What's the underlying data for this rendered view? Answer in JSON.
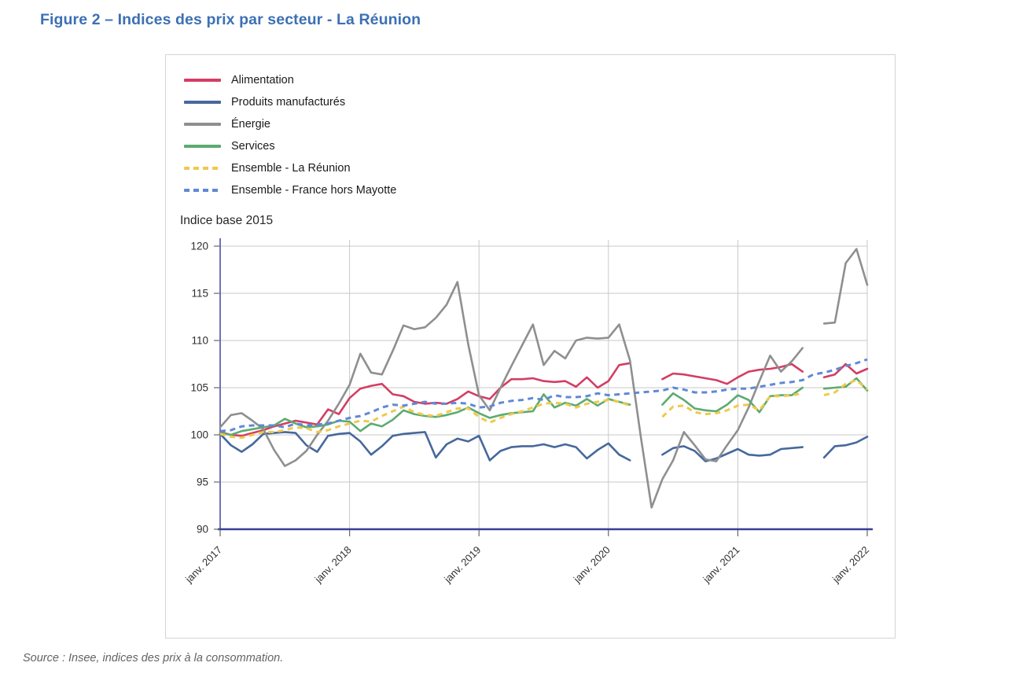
{
  "title": "Figure 2 – Indices des prix par secteur - La Réunion",
  "source_note": "Source : Insee, indices des prix à la consommation.",
  "palette": {
    "title_blue": "#3c70b4",
    "axis_line": "#3a3f96",
    "grid_gray": "#c9c9c9",
    "tick_text": "#2e2e2e",
    "panel_border": "#d4d4d4"
  },
  "chart_data": {
    "type": "line",
    "title": "Indices des prix par secteur - La Réunion",
    "ylabel": "Indice base 2015",
    "xlabel": "",
    "ylim": [
      90,
      121
    ],
    "yticks": [
      90,
      95,
      100,
      105,
      110,
      115,
      120
    ],
    "grid": true,
    "legend_position": "top-left",
    "x_unit": "month",
    "x_range_months": 60,
    "x_note": "Monthly points from janv. 2017 to janv. 2022; null = data gap (avr.–mai 2020 and août 2021)",
    "xtick_labels": [
      "janv. 2017",
      "janv. 2018",
      "janv. 2019",
      "janv. 2020",
      "janv. 2021",
      "janv. 2022"
    ],
    "series": [
      {
        "id": "alimentation",
        "name": "Alimentation",
        "color": "#d43d63",
        "style": "solid",
        "values": [
          100.3,
          100.0,
          99.9,
          100.2,
          100.5,
          100.9,
          101.2,
          101.5,
          101.3,
          101.1,
          102.7,
          102.2,
          103.9,
          104.9,
          105.2,
          105.4,
          104.3,
          104.1,
          103.5,
          103.3,
          103.4,
          103.3,
          103.8,
          104.6,
          104.1,
          103.8,
          105.0,
          105.9,
          105.9,
          106.0,
          105.7,
          105.6,
          105.7,
          105.1,
          106.1,
          105.0,
          105.7,
          107.4,
          107.6,
          null,
          null,
          105.9,
          106.5,
          106.4,
          106.2,
          106.0,
          105.8,
          105.4,
          106.1,
          106.7,
          106.9,
          107.0,
          107.2,
          107.5,
          106.7,
          null,
          106.1,
          106.4,
          107.5,
          106.5,
          107.0
        ]
      },
      {
        "id": "produits-manufactures",
        "name": "Produits manufacturés",
        "color": "#46689c",
        "style": "solid",
        "values": [
          100.1,
          98.9,
          98.2,
          99.0,
          100.1,
          100.2,
          100.3,
          100.2,
          98.9,
          98.2,
          99.9,
          100.1,
          100.2,
          99.3,
          97.9,
          98.8,
          99.9,
          100.1,
          100.2,
          100.3,
          97.6,
          99.0,
          99.6,
          99.3,
          99.9,
          97.3,
          98.3,
          98.7,
          98.8,
          98.8,
          99.0,
          98.7,
          99.0,
          98.7,
          97.5,
          98.4,
          99.1,
          97.9,
          97.3,
          null,
          null,
          97.9,
          98.6,
          98.8,
          98.3,
          97.2,
          97.5,
          98.0,
          98.5,
          97.9,
          97.8,
          97.9,
          98.5,
          98.6,
          98.7,
          null,
          97.6,
          98.8,
          98.9,
          99.2,
          99.8
        ]
      },
      {
        "id": "energie",
        "name": "Énergie",
        "color": "#8f8f8f",
        "style": "solid",
        "values": [
          100.8,
          102.1,
          102.3,
          101.5,
          100.6,
          98.4,
          96.7,
          97.3,
          98.3,
          100.0,
          101.5,
          103.3,
          105.3,
          108.6,
          106.6,
          106.4,
          108.9,
          111.6,
          111.2,
          111.4,
          112.4,
          113.8,
          116.2,
          109.6,
          104.2,
          102.6,
          105.0,
          107.3,
          109.5,
          111.7,
          107.4,
          108.9,
          108.1,
          110.0,
          110.3,
          110.2,
          110.3,
          111.7,
          107.9,
          99.8,
          92.3,
          95.3,
          97.3,
          100.3,
          98.9,
          97.4,
          97.2,
          98.9,
          100.5,
          102.9,
          105.7,
          108.4,
          106.7,
          107.8,
          109.2,
          null,
          111.8,
          111.9,
          118.2,
          119.7,
          115.9
        ]
      },
      {
        "id": "services",
        "name": "Services",
        "color": "#5cab70",
        "style": "solid",
        "values": [
          100.2,
          100.0,
          100.4,
          100.6,
          100.8,
          101.0,
          101.7,
          101.2,
          100.8,
          100.9,
          101.1,
          101.5,
          101.4,
          100.4,
          101.2,
          100.9,
          101.6,
          102.6,
          102.2,
          102.0,
          101.9,
          102.1,
          102.4,
          102.9,
          102.3,
          101.8,
          102.1,
          102.3,
          102.4,
          102.5,
          104.3,
          102.9,
          103.4,
          103.1,
          103.8,
          103.1,
          103.8,
          103.5,
          103.2,
          null,
          null,
          103.2,
          104.4,
          103.7,
          102.8,
          102.6,
          102.5,
          103.2,
          104.2,
          103.7,
          102.4,
          104.1,
          104.2,
          104.2,
          105.0,
          null,
          104.9,
          105.0,
          105.1,
          106.0,
          104.7
        ]
      },
      {
        "id": "ensemble-la-reunion",
        "name": "Ensemble - La Réunion",
        "color": "#f0c94c",
        "style": "dashed",
        "values": [
          100.1,
          99.8,
          99.7,
          100.0,
          100.3,
          100.3,
          100.5,
          100.8,
          100.7,
          100.3,
          100.5,
          100.9,
          101.2,
          101.5,
          101.4,
          102.0,
          102.5,
          103.0,
          102.4,
          102.1,
          102.0,
          102.4,
          102.8,
          102.8,
          101.9,
          101.3,
          101.8,
          102.2,
          102.5,
          102.9,
          103.3,
          103.4,
          103.3,
          102.9,
          103.3,
          103.5,
          103.7,
          103.5,
          103.1,
          null,
          null,
          101.9,
          103.0,
          103.1,
          102.4,
          102.2,
          102.3,
          102.6,
          103.1,
          103.2,
          102.6,
          104.1,
          104.1,
          104.2,
          104.4,
          null,
          104.2,
          104.5,
          105.4,
          105.8,
          104.8
        ]
      },
      {
        "id": "ensemble-france-hors-mayotte",
        "name": "Ensemble - France hors Mayotte",
        "color": "#6089d6",
        "style": "dashed",
        "values": [
          100.4,
          100.5,
          100.9,
          101.0,
          101.0,
          101.0,
          100.8,
          101.2,
          101.0,
          101.1,
          101.2,
          101.5,
          101.8,
          102.0,
          102.4,
          102.9,
          103.2,
          103.1,
          103.3,
          103.5,
          103.3,
          103.3,
          103.4,
          103.3,
          102.9,
          103.0,
          103.4,
          103.6,
          103.7,
          103.9,
          103.7,
          104.2,
          104.0,
          104.0,
          104.1,
          104.4,
          104.2,
          104.3,
          104.4,
          104.5,
          104.6,
          104.7,
          105.0,
          104.8,
          104.5,
          104.5,
          104.6,
          104.8,
          104.9,
          104.9,
          105.1,
          105.3,
          105.5,
          105.6,
          105.8,
          106.4,
          106.6,
          106.9,
          107.3,
          107.6,
          108.0
        ]
      }
    ]
  }
}
